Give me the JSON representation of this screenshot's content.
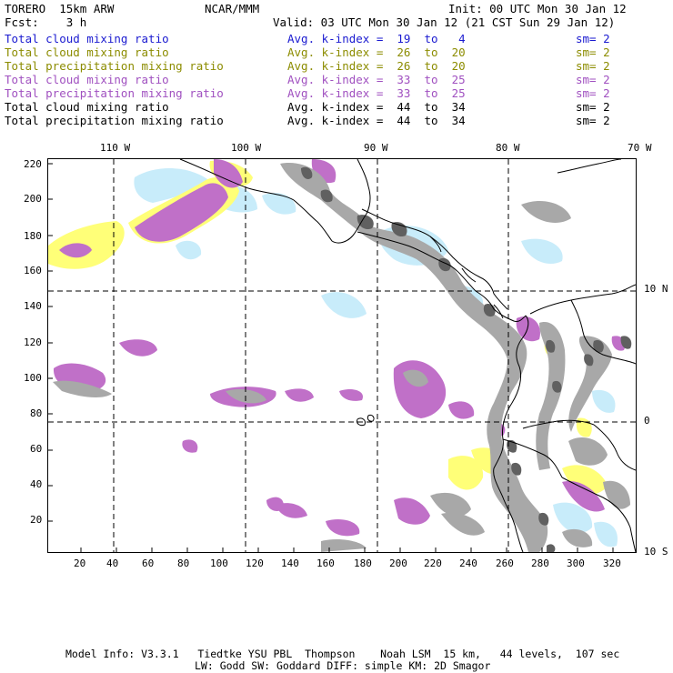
{
  "header": {
    "model": "TORERO  15km ARW",
    "org": "NCAR/MMM",
    "init": "Init: 00 UTC Mon 30 Jan 12",
    "fcst": "Fcst:    3 h",
    "valid": "Valid: 03 UTC Mon 30 Jan 12 (21 CST Sun 29 Jan 12)"
  },
  "legend": [
    {
      "field": "Total cloud mixing ratio",
      "kindex": "Avg. k-index =  19  to   4",
      "sm": "sm= 2",
      "color": "#1a1ad0"
    },
    {
      "field": "Total cloud mixing ratio",
      "kindex": "Avg. k-index =  26  to  20",
      "sm": "sm= 2",
      "color": "#8c8c00"
    },
    {
      "field": "Total precipitation mixing ratio",
      "kindex": "Avg. k-index =  26  to  20",
      "sm": "sm= 2",
      "color": "#8c8c00"
    },
    {
      "field": "Total cloud mixing ratio",
      "kindex": "Avg. k-index =  33  to  25",
      "sm": "sm= 2",
      "color": "#a050c0"
    },
    {
      "field": "Total precipitation mixing ratio",
      "kindex": "Avg. k-index =  33  to  25",
      "sm": "sm= 2",
      "color": "#a050c0"
    },
    {
      "field": "Total cloud mixing ratio",
      "kindex": "Avg. k-index =  44  to  34",
      "sm": "sm= 2",
      "color": "#000000"
    },
    {
      "field": "Total precipitation mixing ratio",
      "kindex": "Avg. k-index =  44  to  34",
      "sm": "sm= 2",
      "color": "#000000"
    }
  ],
  "axes": {
    "lon_labels": [
      "110 W",
      "100 W",
      "90 W",
      "80 W",
      "70 W"
    ],
    "lat_labels": [
      "10 N",
      "0",
      "10 S"
    ],
    "y_ticks": [
      "220",
      "200",
      "180",
      "160",
      "140",
      "120",
      "100",
      "80",
      "60",
      "40",
      "20"
    ],
    "x_ticks": [
      "20",
      "40",
      "60",
      "80",
      "100",
      "120",
      "140",
      "160",
      "180",
      "200",
      "220",
      "240",
      "260",
      "280",
      "300",
      "320"
    ]
  },
  "colors": {
    "light_blue": "#c8ecfa",
    "yellow": "#ffff78",
    "purple": "#c070c8",
    "gray": "#a8a8a8",
    "dark_gray": "#606060"
  },
  "footer": {
    "line1": "Model Info: V3.3.1   Tiedtke YSU PBL  Thompson    Noah LSM  15 km,   44 levels,  107 sec",
    "line2": "LW: Godd SW: Goddard DIFF: simple KM: 2D Smagor"
  }
}
